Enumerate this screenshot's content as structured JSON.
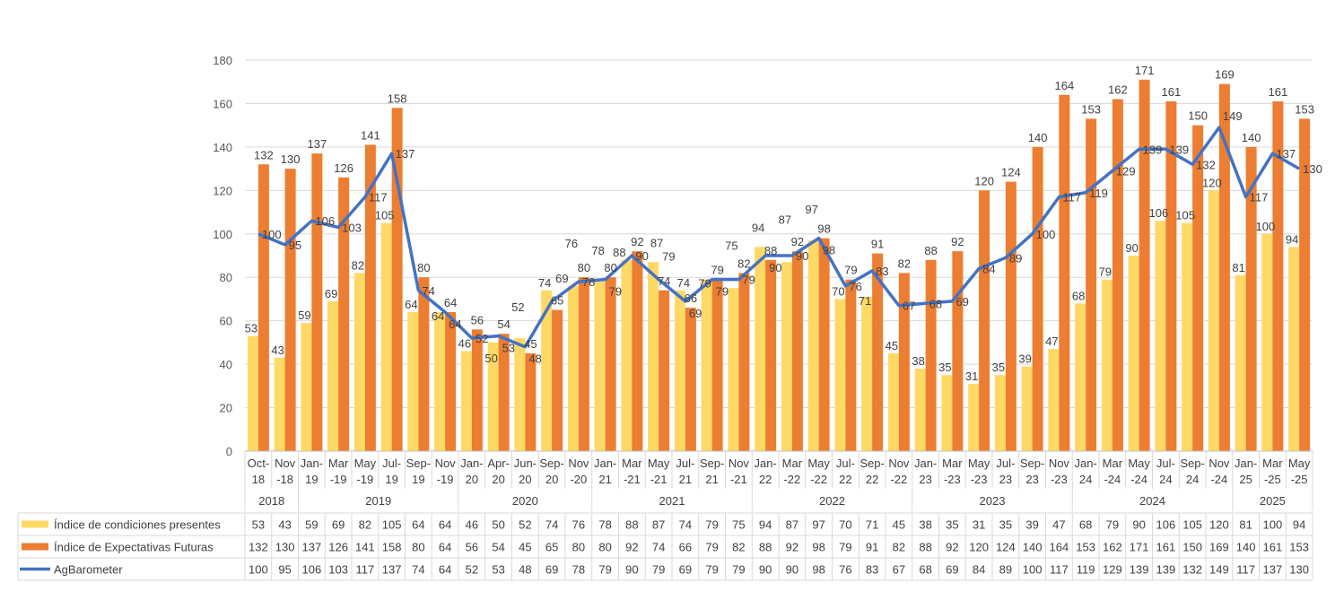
{
  "chart_data": {
    "type": "bar+line",
    "title": "",
    "ylim": [
      0,
      180
    ],
    "yticks": [
      0,
      20,
      40,
      60,
      80,
      100,
      120,
      140,
      160,
      180
    ],
    "grid": true,
    "legend": "data-table-left",
    "categories": [
      "Oct-18",
      "Nov-18",
      "Jan-19",
      "Mar-19",
      "May-19",
      "Jul-19",
      "Sep-19",
      "Nov-19",
      "Jan-20",
      "Apr-20",
      "Jun-20",
      "Sep-20",
      "Nov-20",
      "Jan-21",
      "Mar-21",
      "May-21",
      "Jul-21",
      "Sep-21",
      "Nov-21",
      "Jan-22",
      "Mar-22",
      "May-22",
      "Jul-22",
      "Sep-22",
      "Nov-22",
      "Jan-23",
      "Mar-23",
      "May-23",
      "Jul-23",
      "Sep-23",
      "Nov-23",
      "Jan-24",
      "Mar-24",
      "May-24",
      "Jul-24",
      "Sep-24",
      "Nov-24",
      "Jan-25",
      "Mar-25",
      "May-25"
    ],
    "category_labels": [
      [
        "Oct-",
        "18"
      ],
      [
        "Nov",
        "-18"
      ],
      [
        "Jan-",
        "19"
      ],
      [
        "Mar",
        "-19"
      ],
      [
        "May",
        "-19"
      ],
      [
        "Jul-",
        "19"
      ],
      [
        "Sep-",
        "19"
      ],
      [
        "Nov",
        "-19"
      ],
      [
        "Jan-",
        "20"
      ],
      [
        "Apr-",
        "20"
      ],
      [
        "Jun-",
        "20"
      ],
      [
        "Sep-",
        "20"
      ],
      [
        "Nov",
        "-20"
      ],
      [
        "Jan-",
        "21"
      ],
      [
        "Mar",
        "-21"
      ],
      [
        "May",
        "-21"
      ],
      [
        "Jul-",
        "21"
      ],
      [
        "Sep-",
        "21"
      ],
      [
        "Nov",
        "-21"
      ],
      [
        "Jan-",
        "22"
      ],
      [
        "Mar",
        "-22"
      ],
      [
        "May",
        "-22"
      ],
      [
        "Jul-",
        "22"
      ],
      [
        "Sep-",
        "22"
      ],
      [
        "Nov",
        "-22"
      ],
      [
        "Jan-",
        "23"
      ],
      [
        "Mar",
        "-23"
      ],
      [
        "May",
        "-23"
      ],
      [
        "Jul-",
        "23"
      ],
      [
        "Sep-",
        "23"
      ],
      [
        "Nov",
        "-23"
      ],
      [
        "Jan-",
        "24"
      ],
      [
        "Mar",
        "-24"
      ],
      [
        "May",
        "-24"
      ],
      [
        "Jul-",
        "24"
      ],
      [
        "Sep-",
        "24"
      ],
      [
        "Nov",
        "-24"
      ],
      [
        "Jan-",
        "25"
      ],
      [
        "Mar",
        "-25"
      ],
      [
        "May",
        "-25"
      ]
    ],
    "year_groups": [
      {
        "label": "2018",
        "count": 2
      },
      {
        "label": "2019",
        "count": 6
      },
      {
        "label": "2020",
        "count": 5
      },
      {
        "label": "2021",
        "count": 6
      },
      {
        "label": "2022",
        "count": 6
      },
      {
        "label": "2023",
        "count": 6
      },
      {
        "label": "2024",
        "count": 6
      },
      {
        "label": "2025",
        "count": 3
      }
    ],
    "series": [
      {
        "name": "Índice de condiciones presentes",
        "type": "bar",
        "color": "#FFD966",
        "values": [
          53,
          43,
          59,
          69,
          82,
          105,
          64,
          64,
          46,
          50,
          52,
          74,
          76,
          78,
          88,
          87,
          74,
          79,
          75,
          94,
          87,
          97,
          70,
          71,
          45,
          38,
          35,
          31,
          35,
          39,
          47,
          68,
          79,
          90,
          106,
          105,
          120,
          81,
          100,
          94
        ]
      },
      {
        "name": "Índice de Expectativas Futuras",
        "type": "bar",
        "color": "#ED7D31",
        "values": [
          132,
          130,
          137,
          126,
          141,
          158,
          80,
          64,
          56,
          54,
          45,
          65,
          80,
          80,
          92,
          74,
          66,
          79,
          82,
          88,
          92,
          98,
          79,
          91,
          82,
          88,
          92,
          120,
          124,
          140,
          164,
          153,
          162,
          171,
          161,
          150,
          169,
          140,
          161,
          153
        ]
      },
      {
        "name": "AgBarometer",
        "type": "line",
        "color": "#4472C4",
        "values": [
          100,
          95,
          106,
          103,
          117,
          137,
          74,
          64,
          52,
          53,
          48,
          69,
          78,
          79,
          90,
          79,
          69,
          79,
          79,
          90,
          90,
          98,
          76,
          83,
          67,
          68,
          69,
          84,
          89,
          100,
          117,
          119,
          129,
          139,
          139,
          132,
          149,
          117,
          137,
          130
        ]
      }
    ]
  }
}
